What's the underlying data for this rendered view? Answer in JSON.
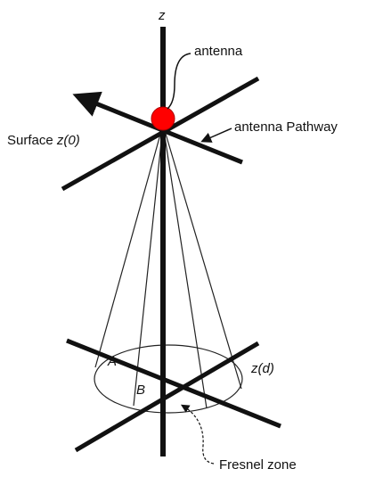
{
  "labels": {
    "z": "z",
    "antenna": "antenna",
    "pathway": "antenna Pathway",
    "surface": "Surface",
    "surface_var": "z(0)",
    "a": "A",
    "b": "B",
    "zd": "z(d)",
    "fresnel": "Fresnel zone"
  }
}
